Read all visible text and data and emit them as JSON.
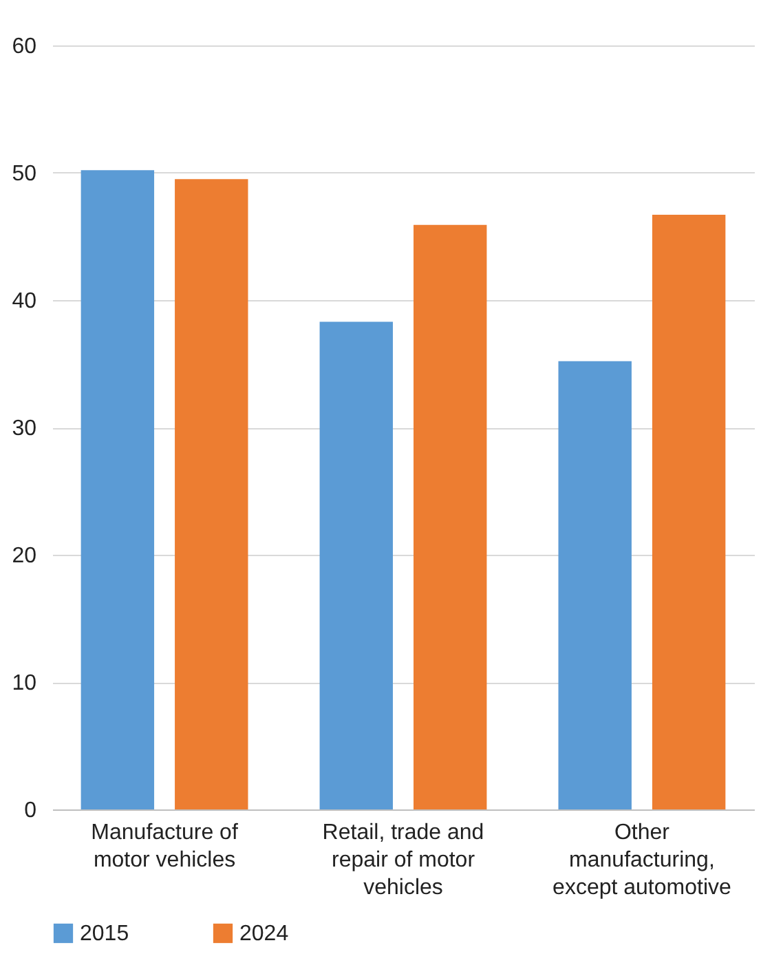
{
  "chart_data": {
    "type": "bar",
    "categories": [
      "Manufacture of motor vehicles",
      "Retail, trade and repair of motor vehicles",
      "Other manufacturing, except automotive"
    ],
    "series": [
      {
        "name": "2015",
        "color": "#5b9bd5",
        "values": [
          50.2,
          38.3,
          35.2
        ]
      },
      {
        "name": "2024",
        "color": "#ed7d31",
        "values": [
          49.5,
          45.9,
          46.7
        ]
      }
    ],
    "ylim": [
      0,
      60
    ],
    "yticks": [
      0,
      10,
      20,
      30,
      40,
      50,
      60
    ],
    "grid": "y",
    "legend": "bottom"
  }
}
